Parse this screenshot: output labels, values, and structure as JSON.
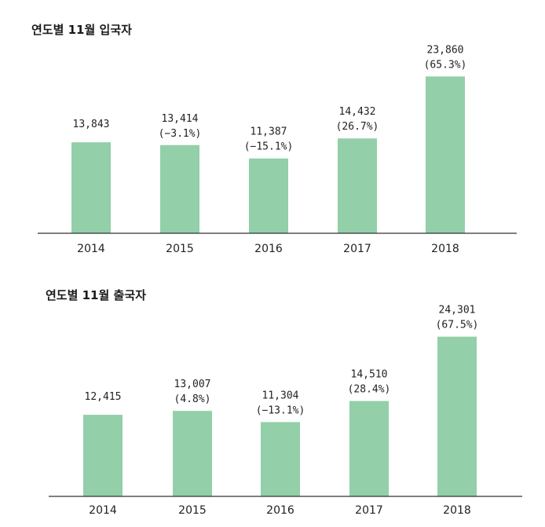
{
  "colors": {
    "bar": "#93cfa8",
    "axis": "#333333",
    "text": "#222222"
  },
  "chart_data": [
    {
      "type": "bar",
      "title": "연도별 11월 입국자",
      "categories": [
        "2014",
        "2015",
        "2016",
        "2017",
        "2018"
      ],
      "values": [
        13843,
        13414,
        11387,
        14432,
        23860
      ],
      "value_labels": [
        "13,843",
        "13,414",
        "11,387",
        "14,432",
        "23,860"
      ],
      "change_labels": [
        "",
        "(−3.1%)",
        "(−15.1%)",
        "(26.7%)",
        "(65.3%)"
      ],
      "ylim": [
        0,
        24500
      ],
      "grid": false,
      "legend": "none",
      "xlabel": "",
      "ylabel": ""
    },
    {
      "type": "bar",
      "title": "연도별 11월 출국자",
      "categories": [
        "2014",
        "2015",
        "2016",
        "2017",
        "2018"
      ],
      "values": [
        12415,
        13007,
        11304,
        14510,
        24301
      ],
      "value_labels": [
        "12,415",
        "13,007",
        "11,304",
        "14,510",
        "24,301"
      ],
      "change_labels": [
        "",
        "(4.8%)",
        "(−13.1%)",
        "(28.4%)",
        "(67.5%)"
      ],
      "ylim": [
        0,
        24500
      ],
      "grid": false,
      "legend": "none",
      "xlabel": "",
      "ylabel": ""
    }
  ]
}
